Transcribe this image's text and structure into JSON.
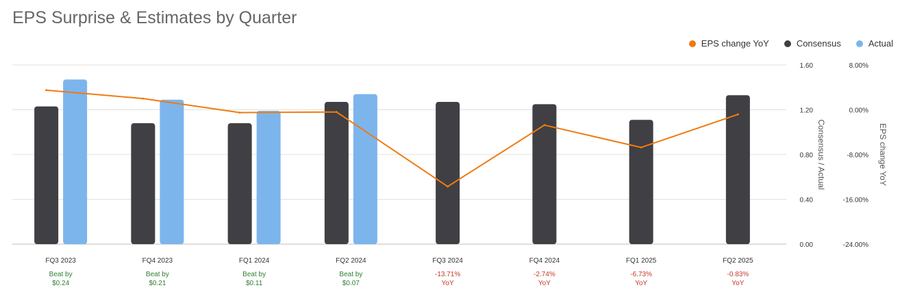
{
  "chart_data": {
    "type": "bar",
    "title": "EPS Surprise & Estimates by Quarter",
    "categories": [
      "FQ3 2023",
      "FQ4 2023",
      "FQ1 2024",
      "FQ2 2024",
      "FQ3 2024",
      "FQ4 2024",
      "FQ1 2025",
      "FQ2 2025"
    ],
    "series": [
      {
        "name": "Consensus",
        "kind": "bar",
        "axis": "left",
        "color": "#3f3f44",
        "values": [
          1.23,
          1.08,
          1.08,
          1.27,
          1.27,
          1.25,
          1.11,
          1.33
        ]
      },
      {
        "name": "Actual",
        "kind": "bar",
        "axis": "left",
        "color": "#7cb5ec",
        "values": [
          1.47,
          1.29,
          1.19,
          1.34,
          null,
          null,
          null,
          null
        ]
      },
      {
        "name": "EPS change YoY",
        "kind": "line",
        "axis": "right",
        "color": "#f07a10",
        "values": [
          3.5,
          2.0,
          -0.5,
          -0.4,
          -13.71,
          -2.74,
          -6.73,
          -0.83
        ]
      }
    ],
    "left_axis": {
      "label": "Consensus / Actual",
      "min": 0,
      "max": 1.6,
      "ticks": [
        "0.00",
        "0.40",
        "0.80",
        "1.20",
        "1.60"
      ]
    },
    "right_axis": {
      "label": "EPS change YoY",
      "min": -24,
      "max": 8,
      "ticks": [
        "-24.00%",
        "-16.00%",
        "-8.00%",
        "0.00%",
        "8.00%"
      ]
    },
    "grid": true,
    "legend_position": "top-right",
    "annotations": [
      {
        "line1": "Beat by",
        "line2": "$0.24",
        "color": "#2e7d32"
      },
      {
        "line1": "Beat by",
        "line2": "$0.21",
        "color": "#2e7d32"
      },
      {
        "line1": "Beat by",
        "line2": "$0.11",
        "color": "#2e7d32"
      },
      {
        "line1": "Beat by",
        "line2": "$0.07",
        "color": "#2e7d32"
      },
      {
        "line1": "-13.71%",
        "line2": "YoY",
        "color": "#c0392b"
      },
      {
        "line1": "-2.74%",
        "line2": "YoY",
        "color": "#c0392b"
      },
      {
        "line1": "-6.73%",
        "line2": "YoY",
        "color": "#c0392b"
      },
      {
        "line1": "-0.83%",
        "line2": "YoY",
        "color": "#c0392b"
      }
    ]
  },
  "legend": [
    {
      "label": "EPS change YoY",
      "color": "#f07a10"
    },
    {
      "label": "Consensus",
      "color": "#3f3f44"
    },
    {
      "label": "Actual",
      "color": "#7cb5ec"
    }
  ]
}
